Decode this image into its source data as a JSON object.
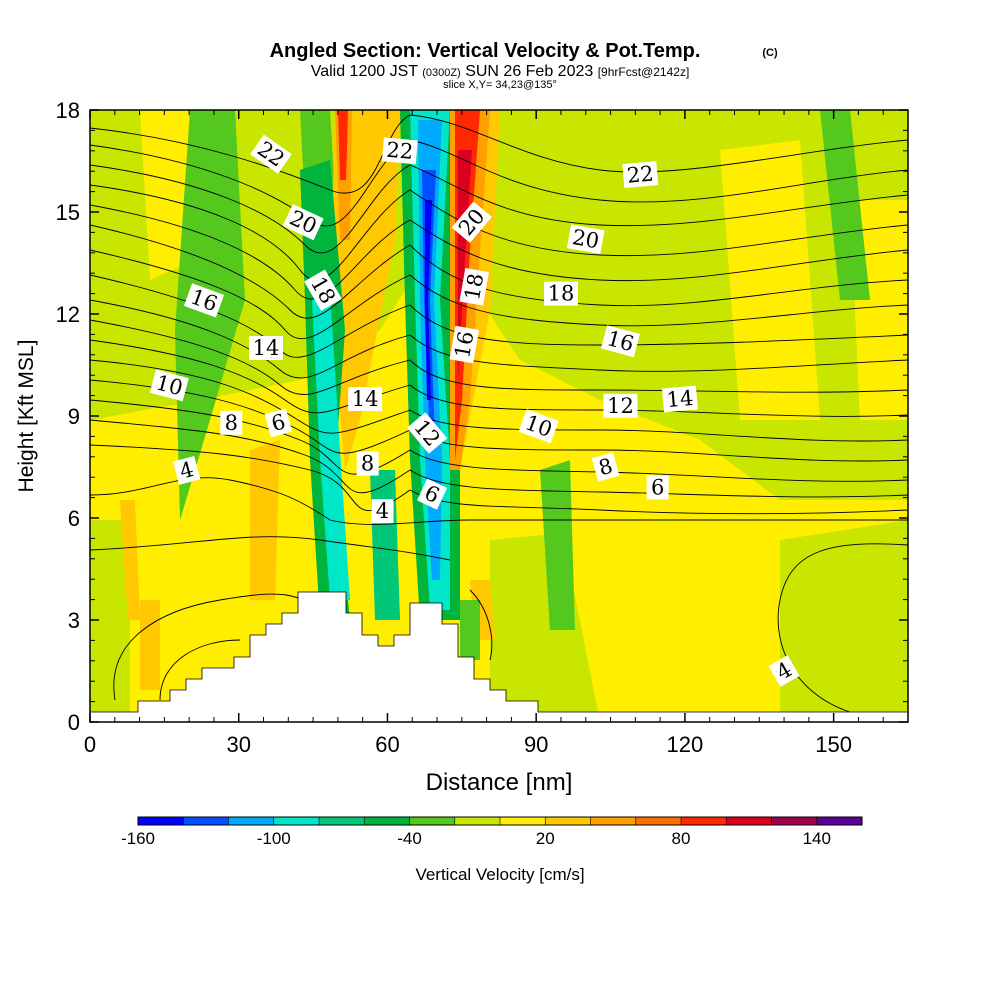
{
  "header": {
    "title": "Angled Section: Vertical Velocity & Pot.Temp.",
    "copyright": "(C)",
    "valid_a": "Valid 1200 JST",
    "valid_zulu": "(0300Z)",
    "valid_b": "SUN 26 Feb 2023",
    "forecast": "[9hrFcst@2142z]",
    "slice": "slice X,Y= 34,23@135°"
  },
  "chart_data": {
    "type": "heatmap",
    "xlabel": "Distance [nm]",
    "ylabel": "Height [Kft MSL]",
    "xlim": [
      0,
      165
    ],
    "ylim": [
      0,
      18
    ],
    "x_ticks": [
      0,
      30,
      60,
      90,
      120,
      150
    ],
    "y_ticks": [
      0,
      3,
      6,
      9,
      12,
      15,
      18
    ],
    "colorbar": {
      "label": "Vertical Velocity [cm/s]",
      "tick_labels": [
        -160,
        -100,
        -40,
        20,
        80,
        140
      ],
      "colors": [
        "#0000ff",
        "#0050ff",
        "#00aaff",
        "#00e6c8",
        "#00c878",
        "#00b43c",
        "#55c81e",
        "#c8e600",
        "#ffee00",
        "#ffc800",
        "#ffa000",
        "#ff6e00",
        "#ff2800",
        "#dc0020",
        "#a00050",
        "#5a0096"
      ]
    },
    "contour_labels": [
      {
        "text": "22",
        "x": 36.5,
        "y": 16.7,
        "angle": 35
      },
      {
        "text": "22",
        "x": 62.5,
        "y": 16.8,
        "angle": 5
      },
      {
        "text": "22",
        "x": 111,
        "y": 16.1,
        "angle": -5
      },
      {
        "text": "20",
        "x": 43,
        "y": 14.7,
        "angle": 25
      },
      {
        "text": "20",
        "x": 77,
        "y": 14.7,
        "angle": -50
      },
      {
        "text": "20",
        "x": 100,
        "y": 14.2,
        "angle": 10
      },
      {
        "text": "18",
        "x": 47,
        "y": 12.7,
        "angle": 60
      },
      {
        "text": "18",
        "x": 77.5,
        "y": 12.8,
        "angle": -80
      },
      {
        "text": "18",
        "x": 95,
        "y": 12.6,
        "angle": 0
      },
      {
        "text": "16",
        "x": 23,
        "y": 12.4,
        "angle": 20
      },
      {
        "text": "16",
        "x": 75.5,
        "y": 11.1,
        "angle": -80
      },
      {
        "text": "16",
        "x": 107,
        "y": 11.2,
        "angle": 15
      },
      {
        "text": "14",
        "x": 35.5,
        "y": 11.0,
        "angle": 0
      },
      {
        "text": "14",
        "x": 55.5,
        "y": 9.5,
        "angle": 0
      },
      {
        "text": "14",
        "x": 119,
        "y": 9.5,
        "angle": -5
      },
      {
        "text": "12",
        "x": 68,
        "y": 8.5,
        "angle": 50
      },
      {
        "text": "12",
        "x": 107,
        "y": 9.3,
        "angle": 0
      },
      {
        "text": "10",
        "x": 16,
        "y": 9.9,
        "angle": 15
      },
      {
        "text": "10",
        "x": 90.5,
        "y": 8.7,
        "angle": 20
      },
      {
        "text": "8",
        "x": 28.5,
        "y": 8.8,
        "angle": 0
      },
      {
        "text": "8",
        "x": 56,
        "y": 7.6,
        "angle": 0
      },
      {
        "text": "8",
        "x": 104,
        "y": 7.5,
        "angle": -15
      },
      {
        "text": "6",
        "x": 38,
        "y": 8.8,
        "angle": -15
      },
      {
        "text": "6",
        "x": 69,
        "y": 6.7,
        "angle": 25
      },
      {
        "text": "6",
        "x": 114.5,
        "y": 6.9,
        "angle": 0
      },
      {
        "text": "4",
        "x": 19.5,
        "y": 7.4,
        "angle": -15
      },
      {
        "text": "4",
        "x": 59,
        "y": 6.2,
        "angle": 0
      },
      {
        "text": "4",
        "x": 140,
        "y": 1.5,
        "angle": -30
      }
    ]
  }
}
